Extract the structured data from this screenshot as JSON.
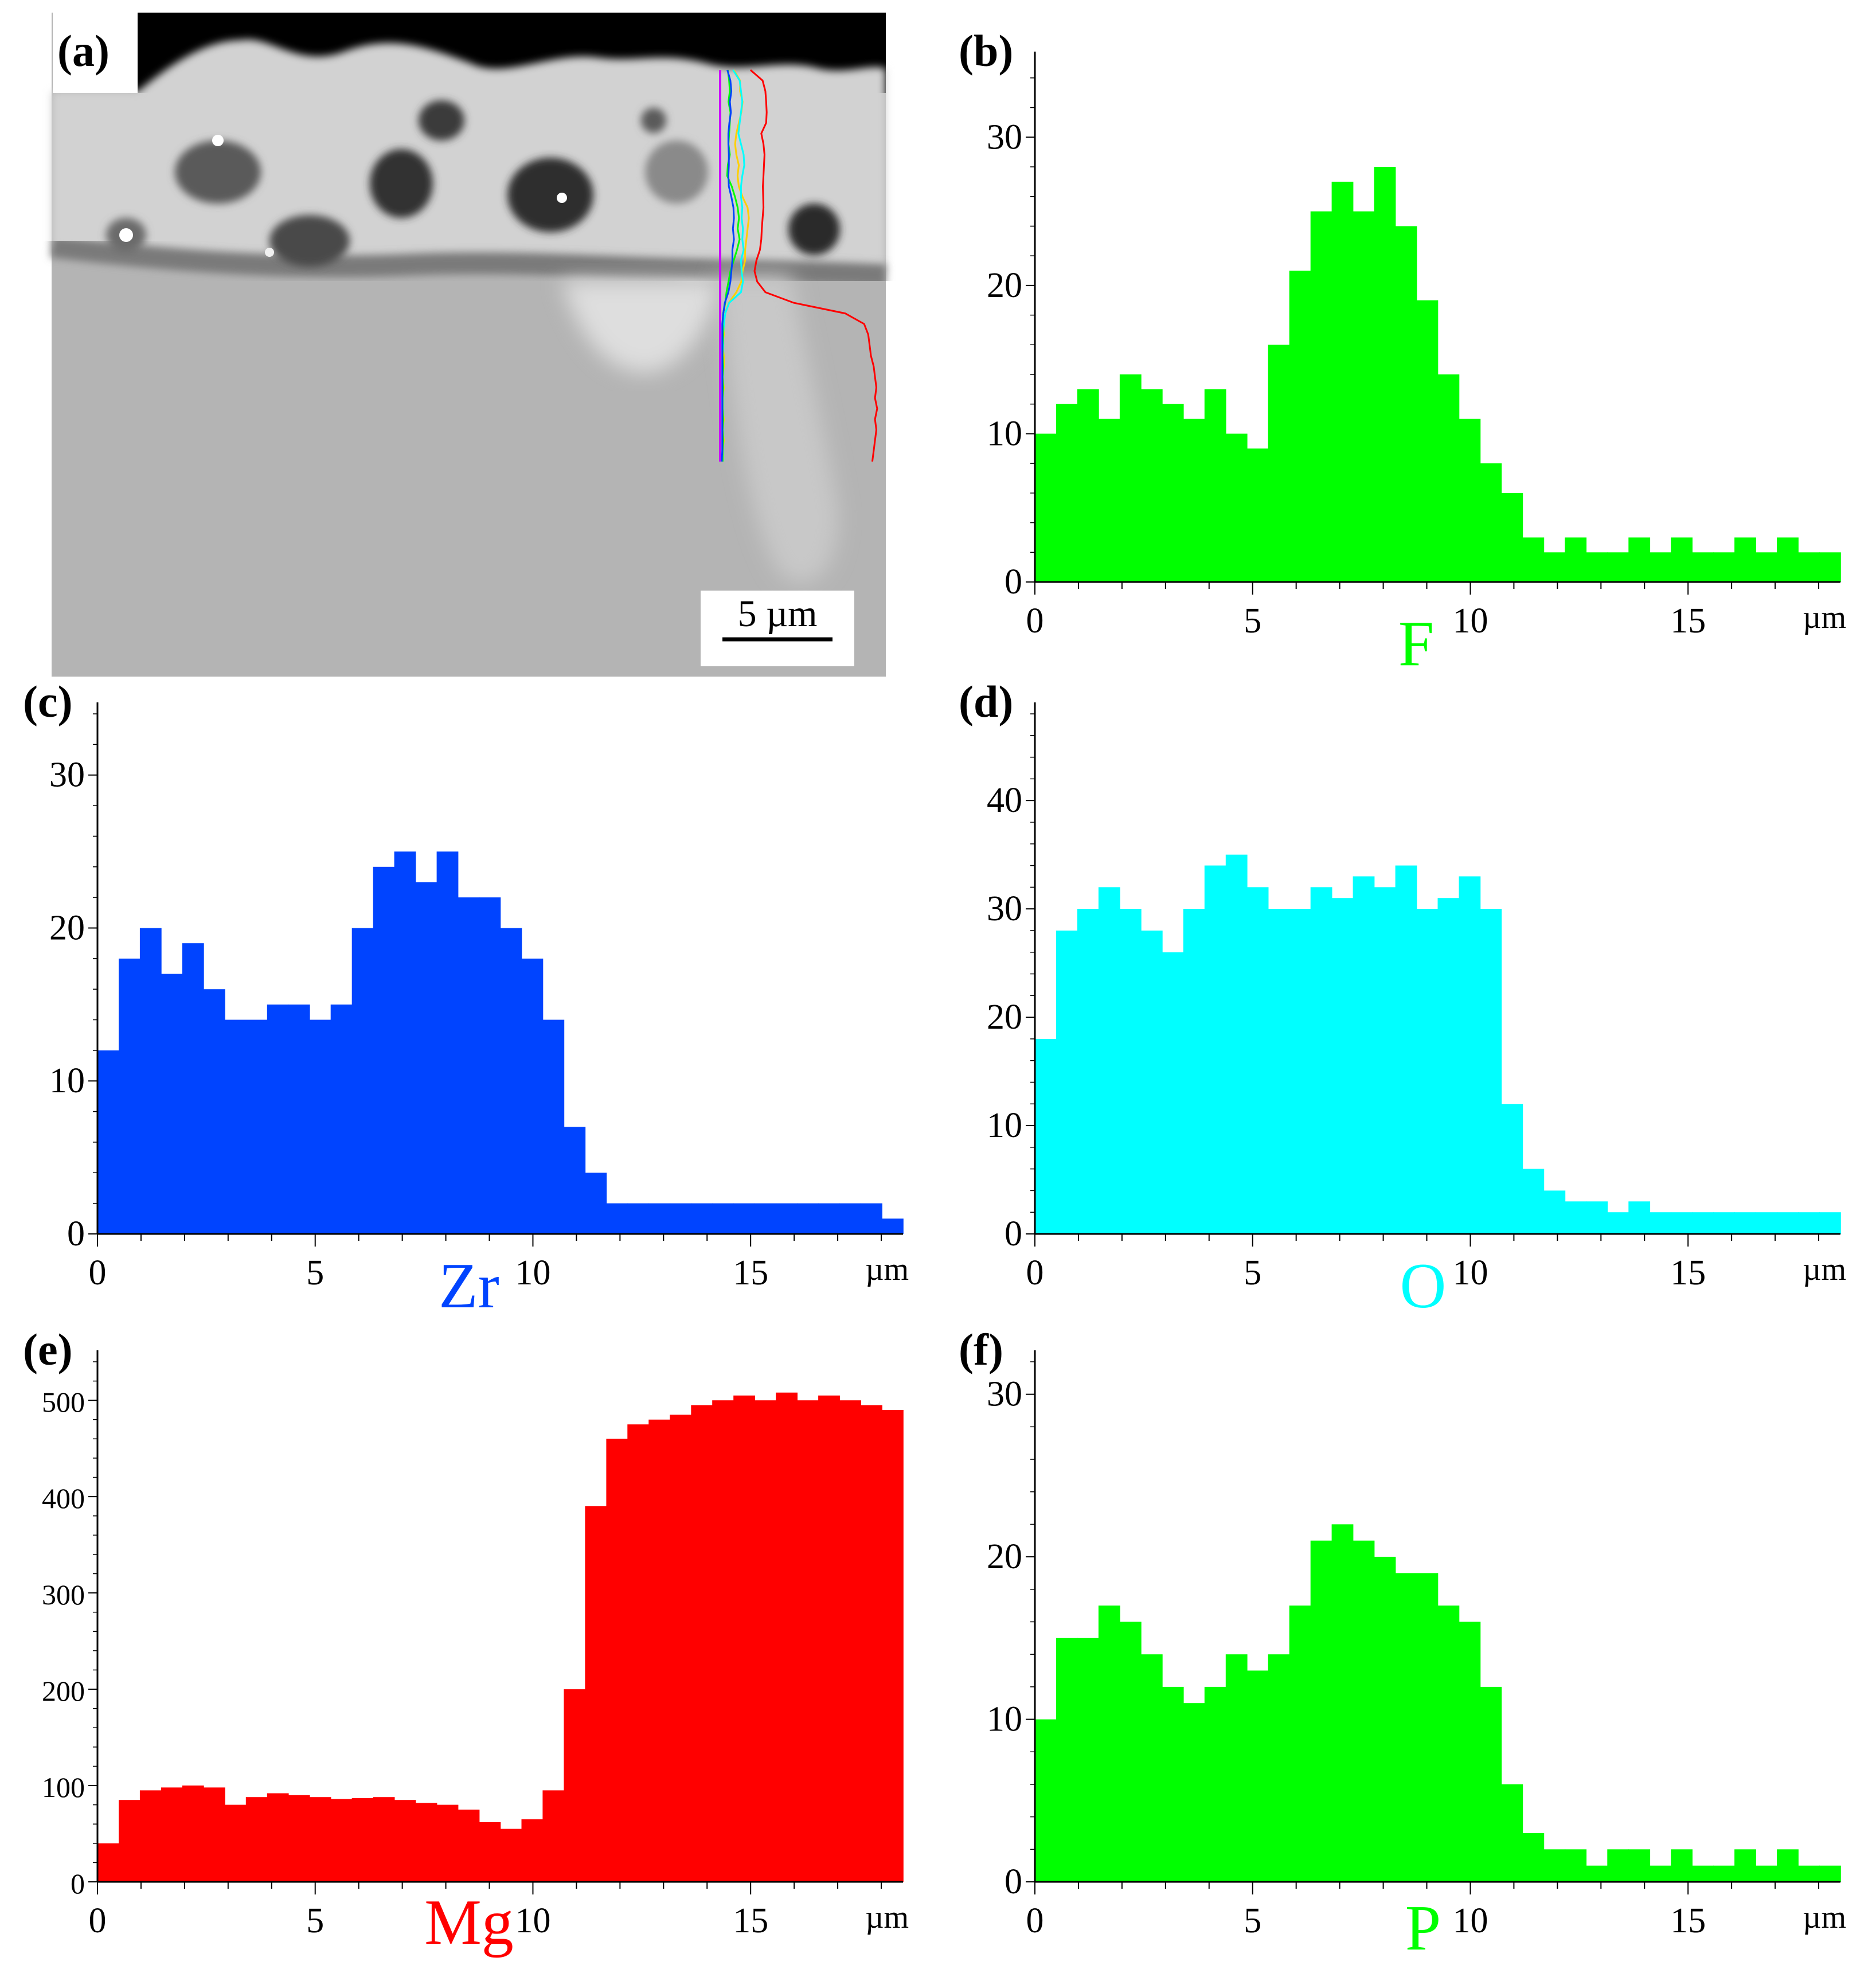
{
  "figure": {
    "panel_labels": [
      "(a)",
      "(b)",
      "(c)",
      "(d)",
      "(e)",
      "(f)"
    ],
    "scale_bar": "5 µm",
    "x_unit": "µm",
    "element_colors": {
      "F": "#00ff00",
      "Zr": "#0044ff",
      "O": "#00ffff",
      "Mg": "#ff0000",
      "P": "#00ff00",
      "trace_yellow": "#ffd000"
    }
  },
  "chart_data": [
    {
      "panel": "(b)",
      "type": "bar",
      "element": "F",
      "color": "#00ff00",
      "xlabel": "F",
      "xunit": "µm",
      "xlim": [
        0,
        18.5
      ],
      "ylim": [
        0,
        35
      ],
      "xticks": [
        0,
        5,
        10,
        15
      ],
      "yticks": [
        0,
        10,
        20,
        30
      ],
      "x": [
        0,
        0.5,
        1,
        1.5,
        2,
        2.5,
        3,
        3.5,
        4,
        4.5,
        5,
        5.5,
        6,
        6.5,
        7,
        7.5,
        8,
        8.5,
        9,
        9.5,
        10,
        10.5,
        11,
        11.5,
        12,
        12.5,
        13,
        13.5,
        14,
        14.5,
        15,
        15.5,
        16,
        16.5,
        17,
        17.5,
        18,
        18.5
      ],
      "values": [
        10,
        12,
        13,
        11,
        14,
        13,
        12,
        11,
        13,
        10,
        9,
        16,
        21,
        25,
        27,
        25,
        28,
        24,
        19,
        14,
        11,
        8,
        6,
        3,
        2,
        3,
        2,
        2,
        3,
        2,
        3,
        2,
        2,
        3,
        2,
        3,
        2,
        2
      ]
    },
    {
      "panel": "(c)",
      "type": "bar",
      "element": "Zr",
      "color": "#0044ff",
      "xlabel": "Zr",
      "xunit": "µm",
      "xlim": [
        0,
        18.5
      ],
      "ylim": [
        0,
        34
      ],
      "xticks": [
        0,
        5,
        10,
        15
      ],
      "yticks": [
        0,
        10,
        20,
        30
      ],
      "x": [
        0,
        0.5,
        1,
        1.5,
        2,
        2.5,
        3,
        3.5,
        4,
        4.5,
        5,
        5.5,
        6,
        6.5,
        7,
        7.5,
        8,
        8.5,
        9,
        9.5,
        10,
        10.5,
        11,
        11.5,
        12,
        12.5,
        13,
        13.5,
        14,
        14.5,
        15,
        15.5,
        16,
        16.5,
        17,
        17.5,
        18,
        18.5
      ],
      "values": [
        12,
        18,
        20,
        17,
        19,
        16,
        14,
        14,
        15,
        15,
        14,
        15,
        20,
        24,
        25,
        23,
        25,
        22,
        22,
        20,
        18,
        14,
        7,
        4,
        2,
        2,
        2,
        2,
        2,
        2,
        2,
        2,
        2,
        2,
        2,
        2,
        2,
        1
      ]
    },
    {
      "panel": "(d)",
      "type": "bar",
      "element": "O",
      "color": "#00ffff",
      "xlabel": "O",
      "xunit": "µm",
      "xlim": [
        0,
        18.5
      ],
      "ylim": [
        0,
        48
      ],
      "xticks": [
        0,
        5,
        10,
        15
      ],
      "yticks": [
        0,
        10,
        20,
        30,
        40
      ],
      "x": [
        0,
        0.5,
        1,
        1.5,
        2,
        2.5,
        3,
        3.5,
        4,
        4.5,
        5,
        5.5,
        6,
        6.5,
        7,
        7.5,
        8,
        8.5,
        9,
        9.5,
        10,
        10.5,
        11,
        11.5,
        12,
        12.5,
        13,
        13.5,
        14,
        14.5,
        15,
        15.5,
        16,
        16.5,
        17,
        17.5,
        18,
        18.5
      ],
      "values": [
        18,
        28,
        30,
        32,
        30,
        28,
        26,
        30,
        34,
        35,
        32,
        30,
        30,
        32,
        31,
        33,
        32,
        34,
        30,
        31,
        33,
        30,
        12,
        6,
        4,
        3,
        3,
        2,
        3,
        2,
        2,
        2,
        2,
        2,
        2,
        2,
        2,
        2
      ]
    },
    {
      "panel": "(e)",
      "type": "area",
      "element": "Mg",
      "color": "#ff0000",
      "xlabel": "Mg",
      "xunit": "µm",
      "xlim": [
        0,
        18.5
      ],
      "ylim": [
        0,
        540
      ],
      "xticks": [
        0,
        5,
        10,
        15
      ],
      "yticks": [
        0,
        100,
        200,
        300,
        400,
        500
      ],
      "x": [
        0,
        0.5,
        1,
        1.5,
        2,
        2.5,
        3,
        3.5,
        4,
        4.5,
        5,
        5.5,
        6,
        6.5,
        7,
        7.5,
        8,
        8.5,
        9,
        9.5,
        10,
        10.5,
        11,
        11.5,
        12,
        12.5,
        13,
        13.5,
        14,
        14.5,
        15,
        15.5,
        16,
        16.5,
        17,
        17.5,
        18,
        18.5
      ],
      "values": [
        40,
        85,
        95,
        98,
        100,
        98,
        80,
        88,
        92,
        90,
        88,
        86,
        87,
        88,
        85,
        82,
        80,
        75,
        62,
        55,
        65,
        95,
        200,
        390,
        460,
        475,
        480,
        485,
        495,
        500,
        505,
        500,
        508,
        500,
        505,
        500,
        495,
        490
      ]
    },
    {
      "panel": "(f)",
      "type": "bar",
      "element": "P",
      "color": "#00ff00",
      "xlabel": "P",
      "xunit": "µm",
      "xlim": [
        0,
        18.5
      ],
      "ylim": [
        0,
        32
      ],
      "xticks": [
        0,
        5,
        10,
        15
      ],
      "yticks": [
        0,
        10,
        20,
        30
      ],
      "x": [
        0,
        0.5,
        1,
        1.5,
        2,
        2.5,
        3,
        3.5,
        4,
        4.5,
        5,
        5.5,
        6,
        6.5,
        7,
        7.5,
        8,
        8.5,
        9,
        9.5,
        10,
        10.5,
        11,
        11.5,
        12,
        12.5,
        13,
        13.5,
        14,
        14.5,
        15,
        15.5,
        16,
        16.5,
        17,
        17.5,
        18,
        18.5
      ],
      "values": [
        10,
        15,
        15,
        17,
        16,
        14,
        12,
        11,
        12,
        14,
        13,
        14,
        17,
        21,
        22,
        21,
        20,
        19,
        19,
        17,
        16,
        12,
        6,
        3,
        2,
        2,
        1,
        2,
        2,
        1,
        2,
        1,
        1,
        2,
        1,
        2,
        1,
        1
      ]
    }
  ]
}
